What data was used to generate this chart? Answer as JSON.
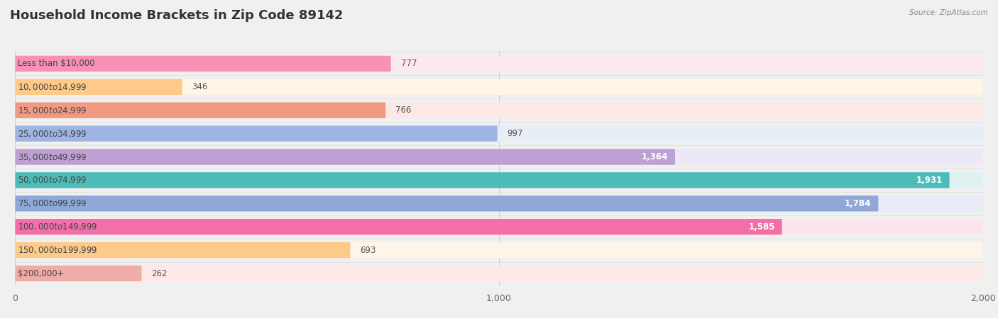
{
  "title": "Household Income Brackets in Zip Code 89142",
  "source": "Source: ZipAtlas.com",
  "categories": [
    "Less than $10,000",
    "$10,000 to $14,999",
    "$15,000 to $24,999",
    "$25,000 to $34,999",
    "$35,000 to $49,999",
    "$50,000 to $74,999",
    "$75,000 to $99,999",
    "$100,000 to $149,999",
    "$150,000 to $199,999",
    "$200,000+"
  ],
  "values": [
    777,
    346,
    766,
    997,
    1364,
    1931,
    1784,
    1585,
    693,
    262
  ],
  "bar_colors": [
    "#F890B8",
    "#FDCA8A",
    "#F09A84",
    "#9DB4E5",
    "#BEA0D5",
    "#4DBCB8",
    "#8FA8D8",
    "#F46FA8",
    "#FDCA8A",
    "#F0ADA8"
  ],
  "bar_bg_colors": [
    "#FDE8F0",
    "#FEF4E8",
    "#FCE8E4",
    "#E8EEF8",
    "#EDE8F5",
    "#DFF2F2",
    "#E8EBF8",
    "#FCE4EE",
    "#FEF4E8",
    "#FCE8E6"
  ],
  "xlim": [
    0,
    2000
  ],
  "xticks": [
    0,
    1000,
    2000
  ],
  "background_color": "#f0f0f0",
  "plot_bg_color": "#f0f0f0",
  "title_fontsize": 13,
  "label_fontsize": 8.5,
  "value_fontsize": 8.5,
  "value_threshold": 1100,
  "bar_height": 0.68,
  "bar_gap": 1.0
}
